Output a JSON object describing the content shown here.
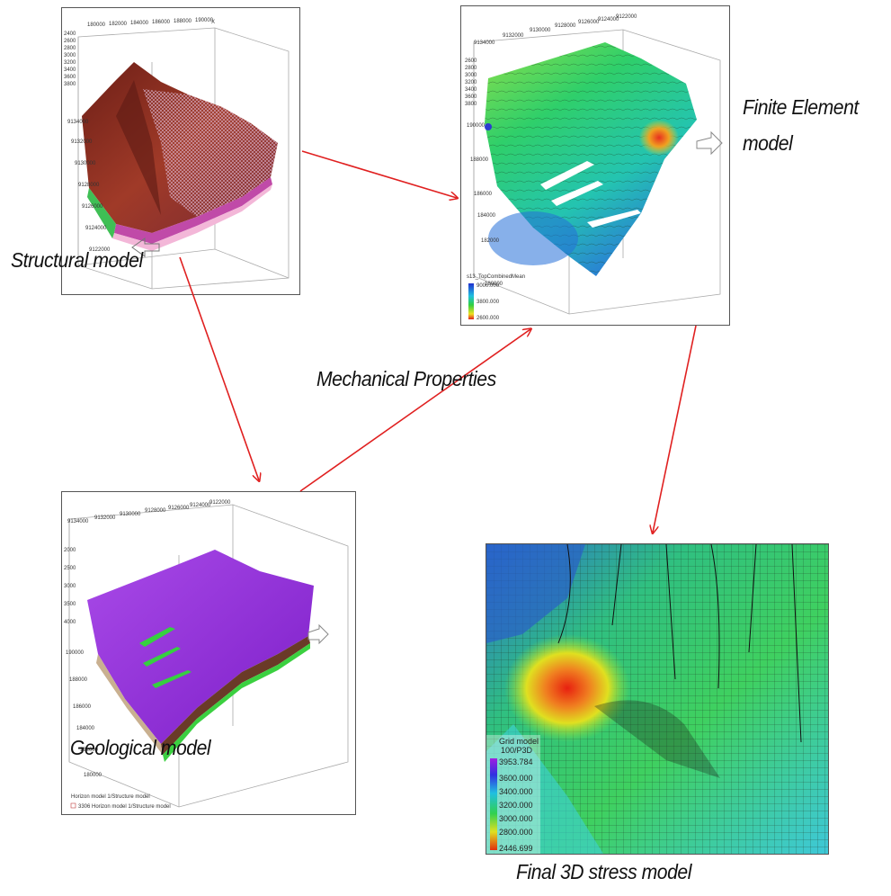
{
  "captions": {
    "structural": "Structural model",
    "finite_element_line1": "Finite Element",
    "finite_element_line2": "model",
    "mechanical": "Mechanical Properties",
    "geological": "Geological model",
    "final": "Final 3D stress model"
  },
  "panels": {
    "structural": {
      "top_ticks": [
        "180000",
        "182000",
        "184000",
        "186000",
        "188000",
        "190000"
      ],
      "corner_label": "X",
      "side_ticks": [
        "2400",
        "2600",
        "2800",
        "3000",
        "3200",
        "3400",
        "3600",
        "3800",
        "9134000",
        "9132000",
        "9130000",
        "9128000",
        "9126000",
        "9124000",
        "9122000"
      ]
    },
    "finite_element": {
      "top_ticks": [
        "9134000",
        "9132000",
        "9130000",
        "9128000",
        "9126000",
        "9124000",
        "9122000"
      ],
      "side_ticks": [
        "2600",
        "2800",
        "3000",
        "3200",
        "3400",
        "3600",
        "3800",
        "190000",
        "188000",
        "186000",
        "184000",
        "182000",
        "180000"
      ],
      "legend_title": "s13_TopCombinedMean",
      "legend_values": [
        "9000.000",
        "3800.000",
        "2600.000"
      ]
    },
    "geological": {
      "top_ticks": [
        "9134000",
        "9132000",
        "9130000",
        "9128000",
        "9126000",
        "9124000",
        "9122000"
      ],
      "side_ticks": [
        "2000",
        "2500",
        "3000",
        "3500",
        "4000",
        "190000",
        "188000",
        "186000",
        "184000",
        "182000",
        "180000"
      ],
      "legend_line1": "Horizon model 1/Structure model",
      "legend_line2": "3306 Horizon model 1/Structure model"
    },
    "final": {
      "legend_title_line1": "Grid model",
      "legend_title_line2": "100/P3D",
      "legend_max": "3953.784",
      "legend_values": [
        "3600.000",
        "3400.000",
        "3200.000",
        "3000.000",
        "2800.000"
      ],
      "legend_min": "2446.699"
    }
  },
  "colors": {
    "arrow": "#e02020",
    "structural_surface": "#8b2b1e",
    "geological_surface": "#9a2fe0",
    "fe_surface": "#2fc86a",
    "final_surface": "#3ecf78"
  }
}
